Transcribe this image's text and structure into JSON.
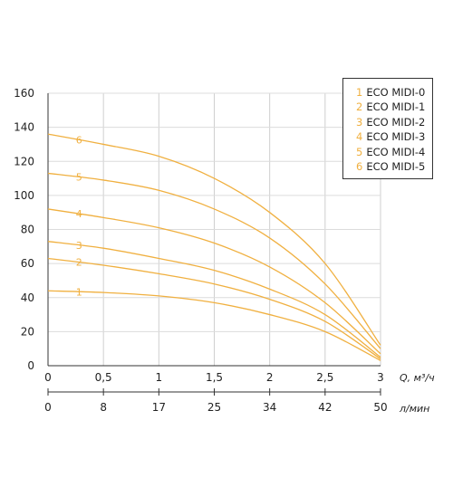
{
  "chart_data": {
    "type": "line",
    "x_ticks": [
      "0",
      "0,5",
      "1",
      "1,5",
      "2",
      "2,5",
      "3"
    ],
    "x2_ticks": [
      "0",
      "8",
      "17",
      "25",
      "34",
      "42",
      "50"
    ],
    "y_ticks": [
      "0",
      "20",
      "40",
      "60",
      "80",
      "100",
      "120",
      "140",
      "160"
    ],
    "xlim": [
      0,
      3
    ],
    "ylim": [
      0,
      160
    ],
    "xlabel": "Q, м³/ч",
    "x2label": "л/мин",
    "grid": true,
    "legend_position": "top-right",
    "curve_color": "#f0b040",
    "series": [
      {
        "name": "ECO MIDI-0",
        "label": "1",
        "x": [
          0,
          0.5,
          1,
          1.5,
          2,
          2.5,
          3
        ],
        "values": [
          44,
          43,
          41,
          37,
          30,
          20,
          3
        ]
      },
      {
        "name": "ECO MIDI-1",
        "label": "2",
        "x": [
          0,
          0.5,
          1,
          1.5,
          2,
          2.5,
          3
        ],
        "values": [
          63,
          59,
          54,
          48,
          39,
          26,
          4
        ]
      },
      {
        "name": "ECO MIDI-2",
        "label": "3",
        "x": [
          0,
          0.5,
          1,
          1.5,
          2,
          2.5,
          3
        ],
        "values": [
          73,
          69,
          63,
          56,
          45,
          30,
          5
        ]
      },
      {
        "name": "ECO MIDI-3",
        "label": "4",
        "x": [
          0,
          0.5,
          1,
          1.5,
          2,
          2.5,
          3
        ],
        "values": [
          92,
          87,
          81,
          72,
          58,
          37,
          7
        ]
      },
      {
        "name": "ECO MIDI-4",
        "label": "5",
        "x": [
          0,
          0.5,
          1,
          1.5,
          2,
          2.5,
          3
        ],
        "values": [
          113,
          109,
          103,
          92,
          75,
          48,
          10
        ]
      },
      {
        "name": "ECO MIDI-5",
        "label": "6",
        "x": [
          0,
          0.5,
          1,
          1.5,
          2,
          2.5,
          3
        ],
        "values": [
          136,
          130,
          123,
          110,
          90,
          60,
          12
        ]
      }
    ]
  }
}
